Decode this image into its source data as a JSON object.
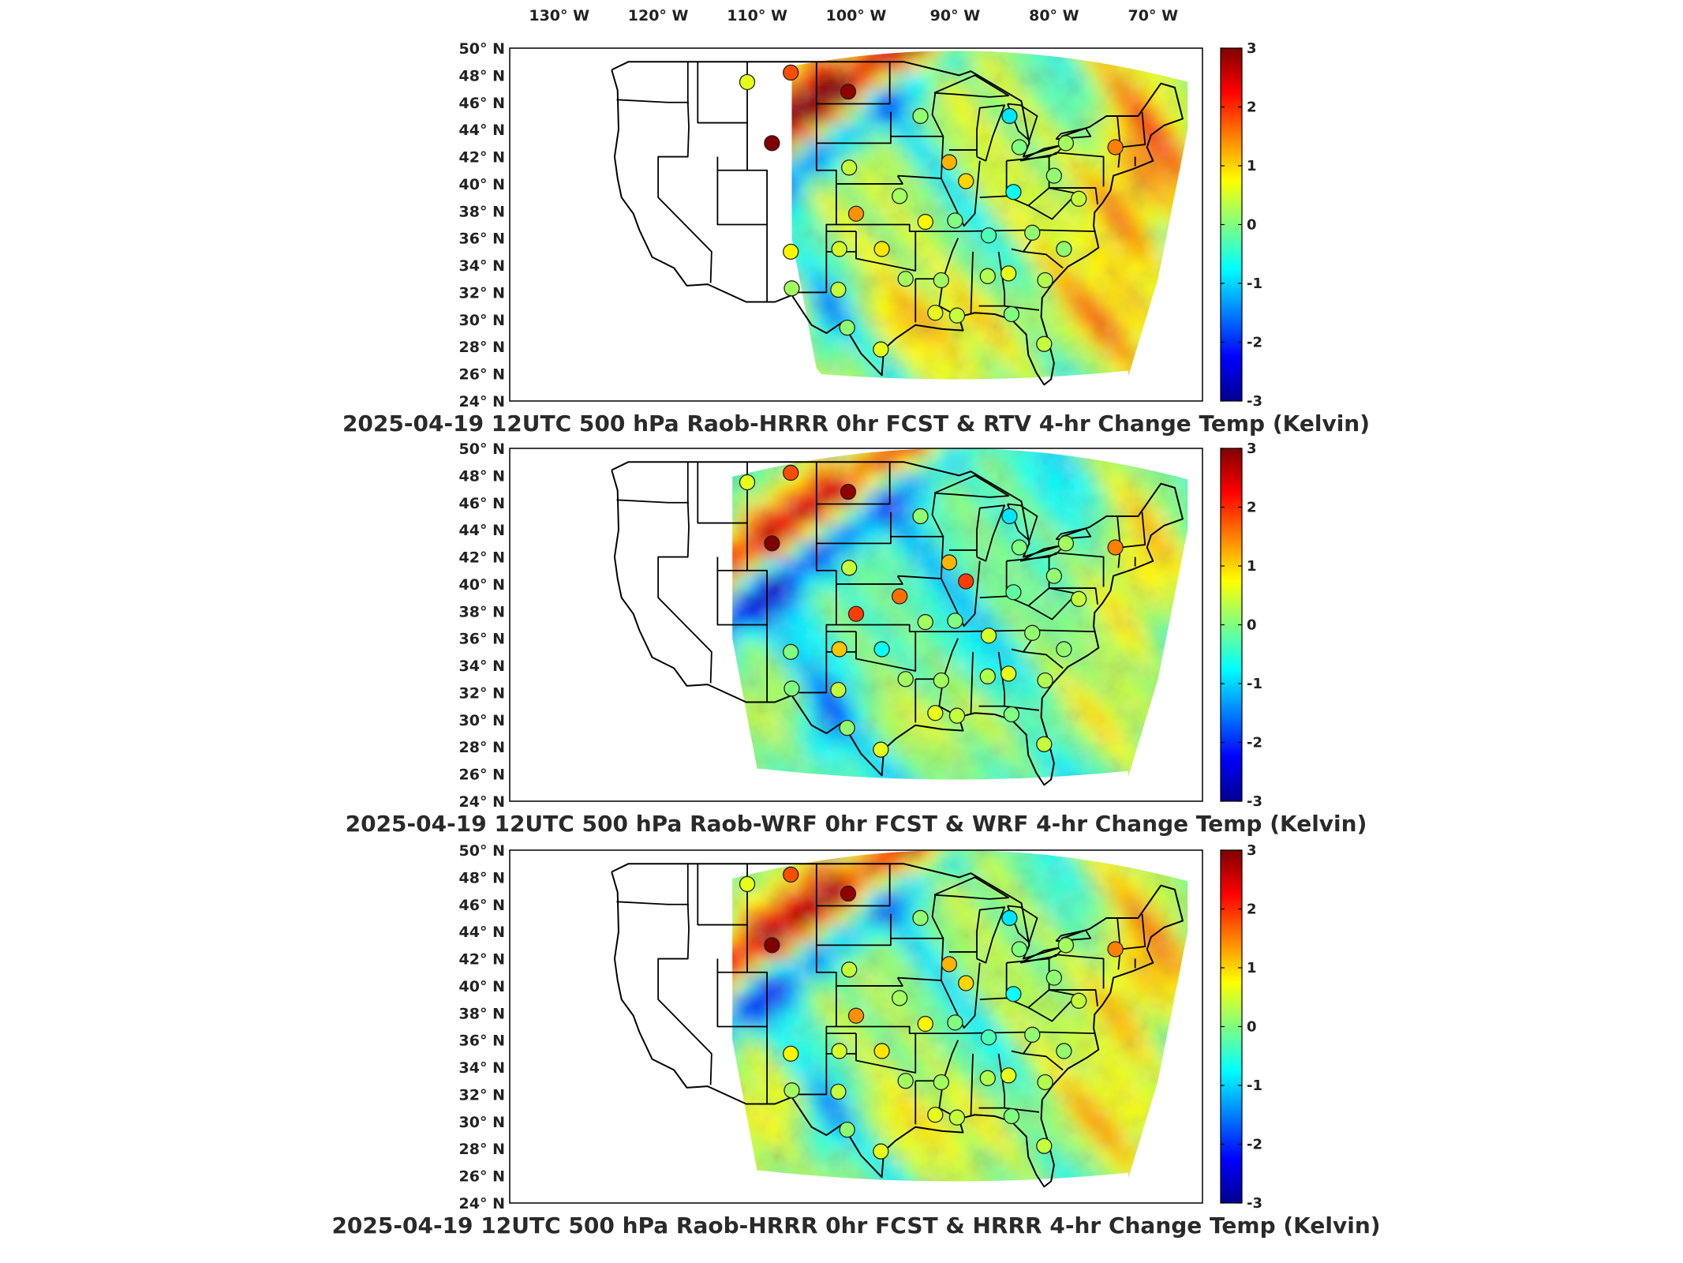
{
  "figure": {
    "lon_labels": [
      "130° W",
      "120° W",
      "110° W",
      "100° W",
      "90° W",
      "80° W",
      "70° W"
    ],
    "lat_labels": [
      "50° N",
      "48° N",
      "46° N",
      "44° N",
      "42° N",
      "40° N",
      "38° N",
      "36° N",
      "34° N",
      "32° N",
      "30° N",
      "28° N",
      "26° N",
      "24° N"
    ],
    "colorbar_ticks": [
      "3",
      "2",
      "1",
      "0",
      "-1",
      "-2",
      "-3"
    ],
    "colorbar_range": [
      -3,
      3
    ],
    "colormap": "jet",
    "colormap_stops": [
      "#00008f",
      "#0000ff",
      "#0080ff",
      "#00ffff",
      "#80ff80",
      "#ffff00",
      "#ff8000",
      "#ff0000",
      "#800000"
    ]
  },
  "panels": [
    {
      "title": "2025-04-19 12UTC 500 hPa Raob-HRRR 0hr FCST & RTV 4-hr Change Temp (Kelvin)",
      "field_style": "rtv"
    },
    {
      "title": "2025-04-19 12UTC 500 hPa Raob-WRF 0hr FCST & WRF 4-hr Change Temp (Kelvin)",
      "field_style": "wrf"
    },
    {
      "title": "2025-04-19 12UTC 500 hPa Raob-HRRR 0hr FCST & HRRR 4-hr Change Temp (Kelvin)",
      "field_style": "hrrr"
    }
  ],
  "chart_data": {
    "type": "heatmap",
    "description_units": "Kelvin",
    "lon_range": [
      -135,
      -65
    ],
    "lat_range": [
      24,
      50
    ],
    "raob_stations": [
      {
        "lon": -111.0,
        "lat": 47.5,
        "values": [
          0.6,
          0.6,
          0.6
        ]
      },
      {
        "lon": -106.6,
        "lat": 48.2,
        "values": [
          1.8,
          1.8,
          1.8
        ]
      },
      {
        "lon": -100.8,
        "lat": 46.8,
        "values": [
          2.9,
          2.9,
          2.9
        ]
      },
      {
        "lon": -108.5,
        "lat": 43.0,
        "values": [
          3.0,
          3.0,
          3.0
        ]
      },
      {
        "lon": -93.5,
        "lat": 45.0,
        "values": [
          0.1,
          0.1,
          0.1
        ]
      },
      {
        "lon": -84.5,
        "lat": 45.0,
        "values": [
          -0.9,
          -0.9,
          -0.9
        ]
      },
      {
        "lon": -83.5,
        "lat": 42.7,
        "values": [
          0.0,
          0.0,
          0.0
        ]
      },
      {
        "lon": -78.8,
        "lat": 43.0,
        "values": [
          0.2,
          0.2,
          0.2
        ]
      },
      {
        "lon": -73.8,
        "lat": 42.7,
        "values": [
          1.5,
          1.5,
          1.5
        ]
      },
      {
        "lon": -100.7,
        "lat": 41.2,
        "values": [
          0.4,
          0.4,
          0.4
        ]
      },
      {
        "lon": -90.6,
        "lat": 41.6,
        "values": [
          1.2,
          1.2,
          1.2
        ]
      },
      {
        "lon": -88.9,
        "lat": 40.2,
        "values": [
          1.0,
          1.9,
          1.0
        ]
      },
      {
        "lon": -84.1,
        "lat": 39.4,
        "values": [
          -0.7,
          -0.2,
          -0.7
        ]
      },
      {
        "lon": -80.0,
        "lat": 40.6,
        "values": [
          0.1,
          0.1,
          0.1
        ]
      },
      {
        "lon": -77.5,
        "lat": 38.9,
        "values": [
          0.4,
          0.4,
          0.4
        ]
      },
      {
        "lon": -95.6,
        "lat": 39.1,
        "values": [
          0.2,
          1.6,
          0.2
        ]
      },
      {
        "lon": -100.0,
        "lat": 37.8,
        "values": [
          1.4,
          1.9,
          1.4
        ]
      },
      {
        "lon": -93.0,
        "lat": 37.2,
        "values": [
          0.8,
          0.2,
          0.8
        ]
      },
      {
        "lon": -90.0,
        "lat": 37.3,
        "values": [
          0.0,
          0.0,
          0.0
        ]
      },
      {
        "lon": -101.7,
        "lat": 35.2,
        "values": [
          0.5,
          1.1,
          0.5
        ]
      },
      {
        "lon": -106.6,
        "lat": 35.0,
        "values": [
          0.8,
          0.0,
          0.8
        ]
      },
      {
        "lon": -97.4,
        "lat": 35.2,
        "values": [
          0.9,
          -0.7,
          0.9
        ]
      },
      {
        "lon": -86.6,
        "lat": 36.2,
        "values": [
          -0.3,
          0.5,
          -0.3
        ]
      },
      {
        "lon": -82.2,
        "lat": 36.4,
        "values": [
          0.1,
          0.1,
          0.1
        ]
      },
      {
        "lon": -79.0,
        "lat": 35.2,
        "values": [
          0.1,
          0.1,
          0.1
        ]
      },
      {
        "lon": -86.7,
        "lat": 33.2,
        "values": [
          0.3,
          0.3,
          0.3
        ]
      },
      {
        "lon": -95.0,
        "lat": 33.0,
        "values": [
          0.2,
          0.2,
          0.2
        ]
      },
      {
        "lon": -91.4,
        "lat": 32.9,
        "values": [
          0.2,
          0.2,
          0.2
        ]
      },
      {
        "lon": -84.6,
        "lat": 33.4,
        "values": [
          0.6,
          0.6,
          0.6
        ]
      },
      {
        "lon": -80.9,
        "lat": 32.9,
        "values": [
          0.3,
          0.3,
          0.3
        ]
      },
      {
        "lon": -106.5,
        "lat": 32.3,
        "values": [
          0.2,
          0.0,
          0.2
        ]
      },
      {
        "lon": -101.8,
        "lat": 32.2,
        "values": [
          0.4,
          0.4,
          0.4
        ]
      },
      {
        "lon": -92.0,
        "lat": 30.5,
        "values": [
          0.6,
          0.6,
          0.6
        ]
      },
      {
        "lon": -89.8,
        "lat": 30.3,
        "values": [
          0.4,
          0.4,
          0.4
        ]
      },
      {
        "lon": -84.3,
        "lat": 30.4,
        "values": [
          0.0,
          0.0,
          0.0
        ]
      },
      {
        "lon": -97.5,
        "lat": 27.8,
        "values": [
          0.6,
          0.6,
          0.6
        ]
      },
      {
        "lon": -100.9,
        "lat": 29.4,
        "values": [
          0.1,
          0.1,
          0.1
        ]
      },
      {
        "lon": -81.0,
        "lat": 28.2,
        "values": [
          0.4,
          0.4,
          0.4
        ]
      }
    ]
  }
}
